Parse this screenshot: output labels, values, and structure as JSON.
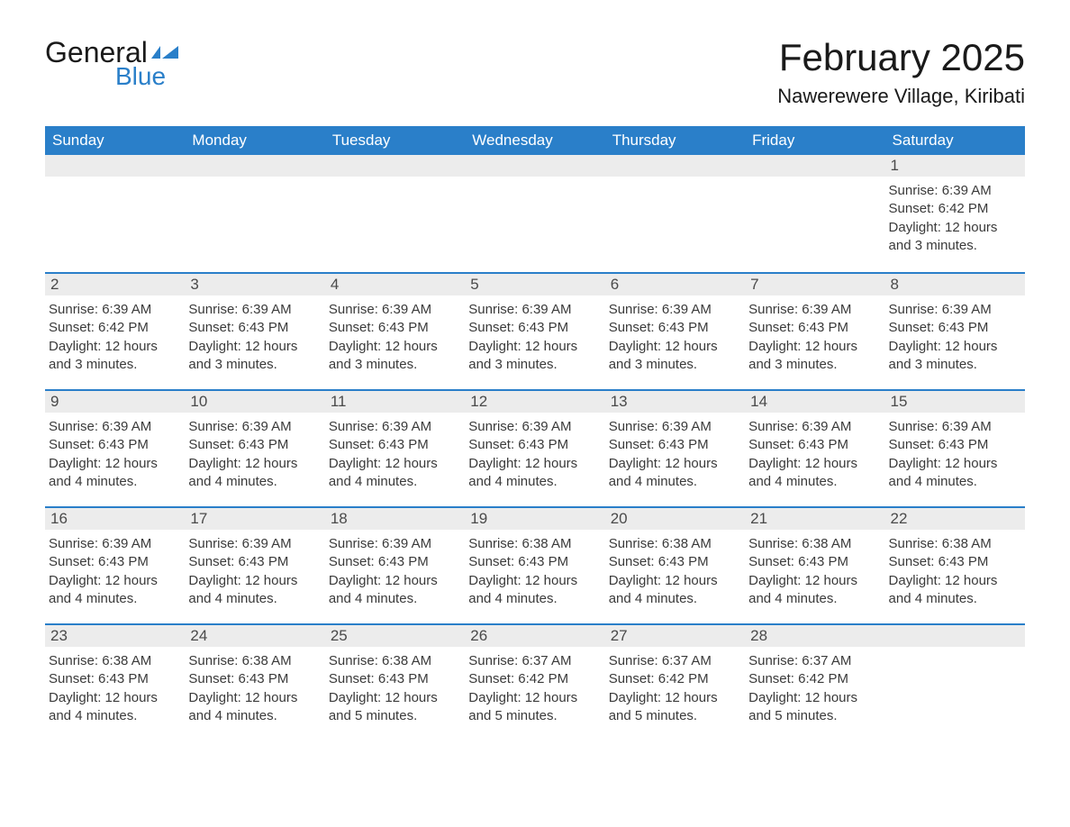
{
  "logo": {
    "text_general": "General",
    "text_blue": "Blue",
    "icon_color": "#2a7fc9"
  },
  "title": "February 2025",
  "location": "Nawerewere Village, Kiribati",
  "colors": {
    "header_bg": "#2a7fc9",
    "header_text": "#ffffff",
    "day_number_bg": "#ececec",
    "day_number_text": "#4a4a4a",
    "body_text": "#3a3a3a",
    "border": "#2a7fc9"
  },
  "day_headers": [
    "Sunday",
    "Monday",
    "Tuesday",
    "Wednesday",
    "Thursday",
    "Friday",
    "Saturday"
  ],
  "weeks": [
    [
      {
        "day": "",
        "sunrise": "",
        "sunset": "",
        "daylight": ""
      },
      {
        "day": "",
        "sunrise": "",
        "sunset": "",
        "daylight": ""
      },
      {
        "day": "",
        "sunrise": "",
        "sunset": "",
        "daylight": ""
      },
      {
        "day": "",
        "sunrise": "",
        "sunset": "",
        "daylight": ""
      },
      {
        "day": "",
        "sunrise": "",
        "sunset": "",
        "daylight": ""
      },
      {
        "day": "",
        "sunrise": "",
        "sunset": "",
        "daylight": ""
      },
      {
        "day": "1",
        "sunrise": "Sunrise: 6:39 AM",
        "sunset": "Sunset: 6:42 PM",
        "daylight": "Daylight: 12 hours and 3 minutes."
      }
    ],
    [
      {
        "day": "2",
        "sunrise": "Sunrise: 6:39 AM",
        "sunset": "Sunset: 6:42 PM",
        "daylight": "Daylight: 12 hours and 3 minutes."
      },
      {
        "day": "3",
        "sunrise": "Sunrise: 6:39 AM",
        "sunset": "Sunset: 6:43 PM",
        "daylight": "Daylight: 12 hours and 3 minutes."
      },
      {
        "day": "4",
        "sunrise": "Sunrise: 6:39 AM",
        "sunset": "Sunset: 6:43 PM",
        "daylight": "Daylight: 12 hours and 3 minutes."
      },
      {
        "day": "5",
        "sunrise": "Sunrise: 6:39 AM",
        "sunset": "Sunset: 6:43 PM",
        "daylight": "Daylight: 12 hours and 3 minutes."
      },
      {
        "day": "6",
        "sunrise": "Sunrise: 6:39 AM",
        "sunset": "Sunset: 6:43 PM",
        "daylight": "Daylight: 12 hours and 3 minutes."
      },
      {
        "day": "7",
        "sunrise": "Sunrise: 6:39 AM",
        "sunset": "Sunset: 6:43 PM",
        "daylight": "Daylight: 12 hours and 3 minutes."
      },
      {
        "day": "8",
        "sunrise": "Sunrise: 6:39 AM",
        "sunset": "Sunset: 6:43 PM",
        "daylight": "Daylight: 12 hours and 3 minutes."
      }
    ],
    [
      {
        "day": "9",
        "sunrise": "Sunrise: 6:39 AM",
        "sunset": "Sunset: 6:43 PM",
        "daylight": "Daylight: 12 hours and 4 minutes."
      },
      {
        "day": "10",
        "sunrise": "Sunrise: 6:39 AM",
        "sunset": "Sunset: 6:43 PM",
        "daylight": "Daylight: 12 hours and 4 minutes."
      },
      {
        "day": "11",
        "sunrise": "Sunrise: 6:39 AM",
        "sunset": "Sunset: 6:43 PM",
        "daylight": "Daylight: 12 hours and 4 minutes."
      },
      {
        "day": "12",
        "sunrise": "Sunrise: 6:39 AM",
        "sunset": "Sunset: 6:43 PM",
        "daylight": "Daylight: 12 hours and 4 minutes."
      },
      {
        "day": "13",
        "sunrise": "Sunrise: 6:39 AM",
        "sunset": "Sunset: 6:43 PM",
        "daylight": "Daylight: 12 hours and 4 minutes."
      },
      {
        "day": "14",
        "sunrise": "Sunrise: 6:39 AM",
        "sunset": "Sunset: 6:43 PM",
        "daylight": "Daylight: 12 hours and 4 minutes."
      },
      {
        "day": "15",
        "sunrise": "Sunrise: 6:39 AM",
        "sunset": "Sunset: 6:43 PM",
        "daylight": "Daylight: 12 hours and 4 minutes."
      }
    ],
    [
      {
        "day": "16",
        "sunrise": "Sunrise: 6:39 AM",
        "sunset": "Sunset: 6:43 PM",
        "daylight": "Daylight: 12 hours and 4 minutes."
      },
      {
        "day": "17",
        "sunrise": "Sunrise: 6:39 AM",
        "sunset": "Sunset: 6:43 PM",
        "daylight": "Daylight: 12 hours and 4 minutes."
      },
      {
        "day": "18",
        "sunrise": "Sunrise: 6:39 AM",
        "sunset": "Sunset: 6:43 PM",
        "daylight": "Daylight: 12 hours and 4 minutes."
      },
      {
        "day": "19",
        "sunrise": "Sunrise: 6:38 AM",
        "sunset": "Sunset: 6:43 PM",
        "daylight": "Daylight: 12 hours and 4 minutes."
      },
      {
        "day": "20",
        "sunrise": "Sunrise: 6:38 AM",
        "sunset": "Sunset: 6:43 PM",
        "daylight": "Daylight: 12 hours and 4 minutes."
      },
      {
        "day": "21",
        "sunrise": "Sunrise: 6:38 AM",
        "sunset": "Sunset: 6:43 PM",
        "daylight": "Daylight: 12 hours and 4 minutes."
      },
      {
        "day": "22",
        "sunrise": "Sunrise: 6:38 AM",
        "sunset": "Sunset: 6:43 PM",
        "daylight": "Daylight: 12 hours and 4 minutes."
      }
    ],
    [
      {
        "day": "23",
        "sunrise": "Sunrise: 6:38 AM",
        "sunset": "Sunset: 6:43 PM",
        "daylight": "Daylight: 12 hours and 4 minutes."
      },
      {
        "day": "24",
        "sunrise": "Sunrise: 6:38 AM",
        "sunset": "Sunset: 6:43 PM",
        "daylight": "Daylight: 12 hours and 4 minutes."
      },
      {
        "day": "25",
        "sunrise": "Sunrise: 6:38 AM",
        "sunset": "Sunset: 6:43 PM",
        "daylight": "Daylight: 12 hours and 5 minutes."
      },
      {
        "day": "26",
        "sunrise": "Sunrise: 6:37 AM",
        "sunset": "Sunset: 6:42 PM",
        "daylight": "Daylight: 12 hours and 5 minutes."
      },
      {
        "day": "27",
        "sunrise": "Sunrise: 6:37 AM",
        "sunset": "Sunset: 6:42 PM",
        "daylight": "Daylight: 12 hours and 5 minutes."
      },
      {
        "day": "28",
        "sunrise": "Sunrise: 6:37 AM",
        "sunset": "Sunset: 6:42 PM",
        "daylight": "Daylight: 12 hours and 5 minutes."
      },
      {
        "day": "",
        "sunrise": "",
        "sunset": "",
        "daylight": ""
      }
    ]
  ]
}
